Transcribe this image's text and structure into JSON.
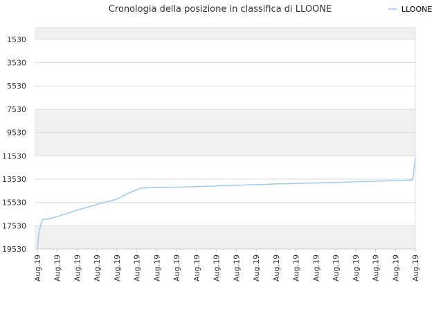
{
  "chart_data": {
    "type": "line",
    "title": "Cronologia della posizione in classifica di LLOONE",
    "xlabel": "",
    "ylabel": "",
    "y_inverted": true,
    "ylim": [
      19530,
      530
    ],
    "yticks": [
      1530,
      3530,
      5530,
      7530,
      9530,
      11530,
      13530,
      15530,
      17530,
      19530
    ],
    "xtick_labels": [
      "Aug.19",
      "Aug.19",
      "Aug.19",
      "Aug.19",
      "Aug.19",
      "Aug.19",
      "Aug.19",
      "Aug.19",
      "Aug.19",
      "Aug.19",
      "Aug.19",
      "Aug.19",
      "Aug.19",
      "Aug.19",
      "Aug.19",
      "Aug.19",
      "Aug.19",
      "Aug.19",
      "Aug.19",
      "Aug.19"
    ],
    "grid": true,
    "legend_position": "top-right",
    "colors": {
      "line": "#9ec9f0",
      "band": "#f0f0f0",
      "grid": "#dddddd",
      "axis": "#cccccc"
    },
    "series": [
      {
        "name": "LLOONE",
        "x": [
          0.0,
          0.08,
          0.25,
          0.55,
          1.1,
          2.0,
          3.0,
          4.0,
          4.5,
          5.2,
          6.0,
          7.0,
          8.0,
          9.0,
          10.0,
          11.0,
          12.0,
          13.0,
          14.0,
          15.0,
          16.0,
          17.0,
          18.0,
          18.85,
          18.9,
          19.0
        ],
        "y": [
          19530,
          18000,
          17000,
          16950,
          16700,
          16200,
          15700,
          15250,
          14800,
          14300,
          14250,
          14220,
          14180,
          14120,
          14060,
          14000,
          13950,
          13900,
          13860,
          13810,
          13760,
          13710,
          13660,
          13600,
          13250,
          11700
        ]
      }
    ]
  }
}
